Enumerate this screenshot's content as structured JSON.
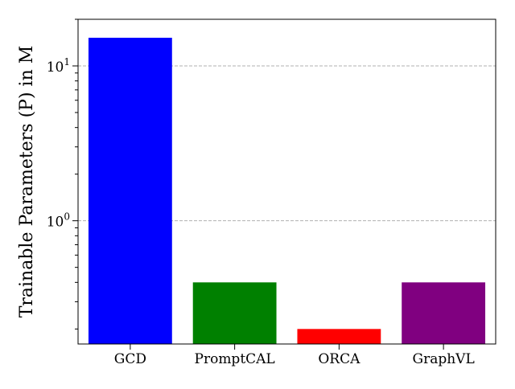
{
  "chart_data": {
    "type": "bar",
    "title": "",
    "xlabel": "",
    "ylabel": "Trainable Parameters (P) in M",
    "yscale": "log",
    "ylim": [
      0.16,
      20
    ],
    "grid": "y-major-dashed",
    "categories": [
      "GCD",
      "PromptCAL",
      "ORCA",
      "GraphVL"
    ],
    "values": [
      15.2,
      0.4,
      0.2,
      0.4
    ],
    "colors": [
      "#0000ff",
      "#008000",
      "#ff0000",
      "#800080"
    ],
    "yticks": [
      {
        "value": 1,
        "base": "10",
        "exp": "0"
      },
      {
        "value": 10,
        "base": "10",
        "exp": "1"
      }
    ]
  }
}
